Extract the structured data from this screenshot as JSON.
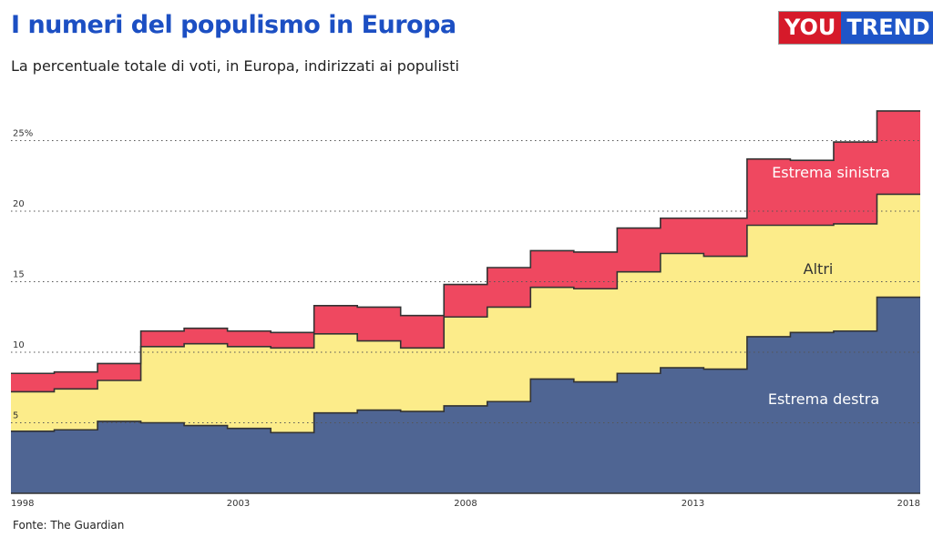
{
  "title": "I numeri del populismo in Europa",
  "subtitle": "La percentuale totale di voti, in Europa, indirizzati ai populisti",
  "logo": {
    "part1": "YOU",
    "part2": "TREND"
  },
  "source": "Fonte: The Guardian",
  "chart_data": {
    "type": "area",
    "stacked": true,
    "step": true,
    "x": [
      1998,
      1999,
      2000,
      2001,
      2002,
      2003,
      2004,
      2005,
      2006,
      2007,
      2008,
      2009,
      2010,
      2011,
      2012,
      2013,
      2014,
      2015,
      2016,
      2017,
      2018
    ],
    "x_tick_labels": [
      "1998",
      "2003",
      "2008",
      "2013",
      "2018"
    ],
    "y_tick_labels": [
      "5",
      "10",
      "15",
      "20",
      "25%"
    ],
    "y_ticks": [
      5,
      10,
      15,
      20,
      25
    ],
    "ylim": [
      0,
      28
    ],
    "grid": "horizontal dotted",
    "series": [
      {
        "name": "Estrema destra",
        "color": "#4f6593",
        "label_color": "#ffffff",
        "values": [
          4.4,
          4.5,
          5.1,
          5.0,
          4.8,
          4.6,
          4.3,
          5.7,
          5.9,
          5.8,
          6.2,
          6.5,
          8.1,
          7.9,
          8.5,
          8.9,
          8.8,
          11.1,
          11.4,
          11.5,
          13.9
        ]
      },
      {
        "name": "Altri",
        "color": "#fcec8a",
        "label_color": "#333333",
        "values": [
          2.8,
          2.9,
          2.9,
          5.4,
          5.8,
          5.8,
          6.0,
          5.6,
          4.9,
          4.5,
          6.3,
          6.7,
          6.5,
          6.6,
          7.2,
          8.1,
          8.0,
          7.9,
          7.6,
          7.6,
          7.3
        ]
      },
      {
        "name": "Estrema sinistra",
        "color": "#ef4860",
        "label_color": "#ffffff",
        "values": [
          1.3,
          1.2,
          1.2,
          1.1,
          1.1,
          1.1,
          1.1,
          2.0,
          2.4,
          2.3,
          2.3,
          2.8,
          2.6,
          2.6,
          3.1,
          2.5,
          2.7,
          4.7,
          4.6,
          5.8,
          5.9
        ]
      }
    ]
  }
}
